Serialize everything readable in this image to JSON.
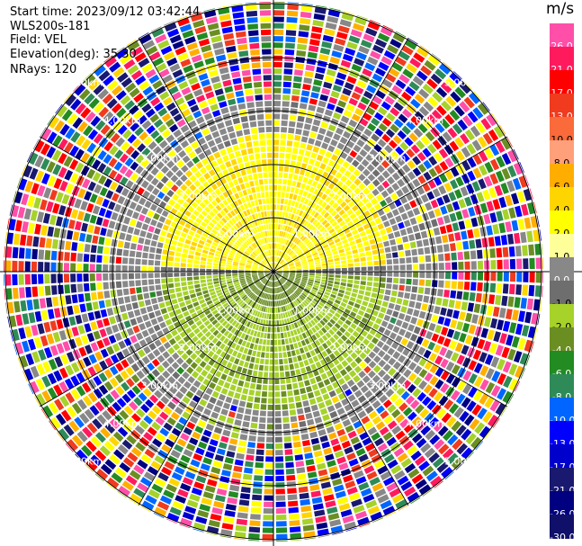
{
  "header": {
    "start_time": "Start time: 2023/09/12 03:42:44",
    "instrument": "WLS200s-181",
    "field": "Field: VEL",
    "elevation": "Elevation(deg): 35.30",
    "nrays": "NRays: 120"
  },
  "colorbar": {
    "unit": "m/s",
    "labels": [
      "26.0",
      "21.0",
      "17.0",
      "13.0",
      "10.0",
      "8.0",
      "6.0",
      "4.0",
      "2.0",
      "1.0",
      "0.0",
      "-1.0",
      "-2.0",
      "-4.0",
      "-6.0",
      "-8.0",
      "-10.0",
      "-13.0",
      "-17.0",
      "-21.0",
      "-26.0",
      "-30.0"
    ],
    "colors": [
      "#ff4fa8",
      "#ff1a5e",
      "#ff0000",
      "#f03b1e",
      "#fa6a3a",
      "#ffa07a",
      "#ffae00",
      "#ffd500",
      "#ffff00",
      "#ffff9a",
      "#888888",
      "#6e6e6e",
      "#a6d22a",
      "#6b8e23",
      "#228b22",
      "#2e8b57",
      "#0066ff",
      "#0000ff",
      "#0000cd",
      "#191970",
      "#000080",
      "#10106a"
    ]
  },
  "chart_data": {
    "type": "polar radar PPI",
    "field": "VEL",
    "units": "m/s",
    "nrays": 120,
    "range_rings_km": [
      1.0,
      2.0,
      3.0,
      4.0,
      5.0
    ],
    "ring_labels": [
      "1.00km",
      "2.00km",
      "3.00km",
      "4.00km",
      "5.00km"
    ],
    "color_scale_m_s": [
      26.0,
      21.0,
      17.0,
      13.0,
      10.0,
      8.0,
      6.0,
      4.0,
      2.0,
      1.0,
      0.0,
      -1.0,
      -2.0,
      -4.0,
      -6.0,
      -8.0,
      -10.0,
      -13.0,
      -17.0,
      -21.0,
      -26.0,
      -30.0
    ],
    "pattern": {
      "north_half_inner_km": "positive velocities 2.0 to 4.0 m/s (yellow) within ~2.4 km",
      "south_half_inner_km": "negative velocities -2.0 to -4.0 m/s (green) within ~2.4 km",
      "gray_band_km": "near-zero velocities between ~1.5 and ~3.0 km",
      "outer_km": "noisy mixed velocities beyond ~3.0 km"
    }
  }
}
